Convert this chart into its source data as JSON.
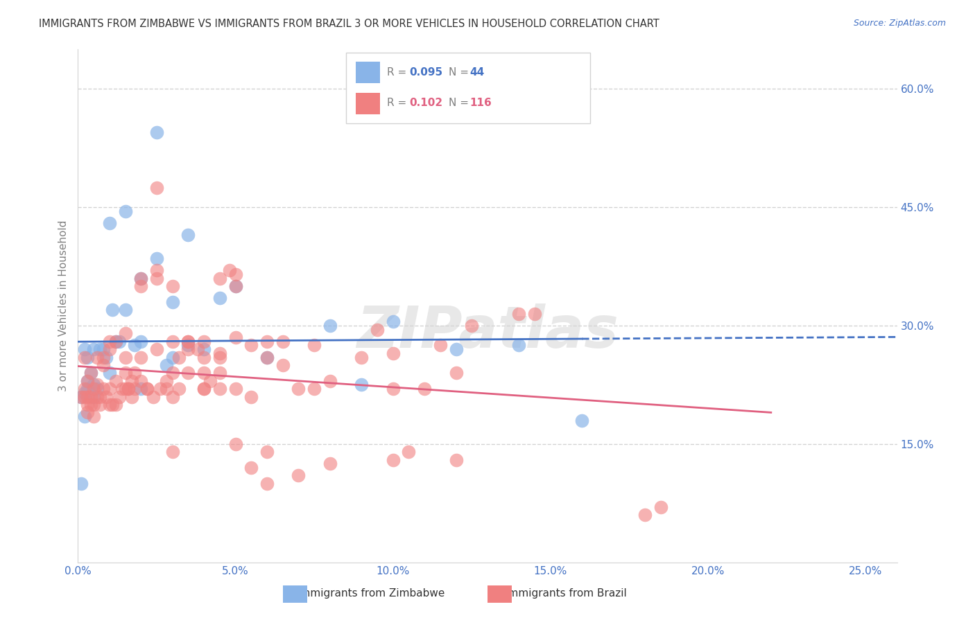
{
  "title": "IMMIGRANTS FROM ZIMBABWE VS IMMIGRANTS FROM BRAZIL 3 OR MORE VEHICLES IN HOUSEHOLD CORRELATION CHART",
  "source": "Source: ZipAtlas.com",
  "xlabel_ticks": [
    "0.0%",
    "5.0%",
    "10.0%",
    "15.0%",
    "20.0%",
    "25.0%"
  ],
  "xlabel_vals": [
    0.0,
    5.0,
    10.0,
    15.0,
    20.0,
    25.0
  ],
  "ylabel_right_ticks": [
    "60.0%",
    "45.0%",
    "30.0%",
    "15.0%"
  ],
  "ylabel_right_vals": [
    60.0,
    45.0,
    30.0,
    15.0
  ],
  "ylabel_left": "3 or more Vehicles in Household",
  "ylim": [
    0.0,
    65.0
  ],
  "xlim": [
    0.0,
    26.0
  ],
  "legend_blue_r": "R = ",
  "legend_blue_r_val": "0.095",
  "legend_blue_n": "N = ",
  "legend_blue_n_val": "44",
  "legend_pink_r": "R = ",
  "legend_pink_r_val": "0.102",
  "legend_pink_n": "N = ",
  "legend_pink_n_val": "116",
  "legend_label_blue": "Immigrants from Zimbabwe",
  "legend_label_pink": "Immigrants from Brazil",
  "blue_color": "#89b4e8",
  "pink_color": "#f08080",
  "trend_blue_color": "#4472c4",
  "trend_pink_color": "#e06080",
  "watermark": "ZIPatlas",
  "blue_scatter_x": [
    0.5,
    1.0,
    1.5,
    0.2,
    0.3,
    0.4,
    0.6,
    0.8,
    1.2,
    1.8,
    2.0,
    2.5,
    3.0,
    0.1,
    0.2,
    0.3,
    0.3,
    0.5,
    0.7,
    0.9,
    1.1,
    1.3,
    1.5,
    2.0,
    2.8,
    3.5,
    4.5,
    0.1,
    0.2,
    0.5,
    1.0,
    2.0,
    3.0,
    4.0,
    5.0,
    6.0,
    8.0,
    9.0,
    10.0,
    12.0,
    14.0,
    16.0,
    2.5,
    3.5
  ],
  "blue_scatter_y": [
    27.0,
    43.0,
    44.5,
    27.0,
    26.0,
    24.0,
    22.0,
    27.0,
    28.0,
    27.5,
    36.0,
    38.5,
    33.0,
    21.0,
    21.5,
    22.0,
    23.0,
    22.5,
    27.0,
    26.0,
    32.0,
    28.0,
    32.0,
    28.0,
    25.0,
    27.5,
    33.5,
    10.0,
    18.5,
    21.0,
    24.0,
    22.0,
    26.0,
    27.0,
    35.0,
    26.0,
    30.0,
    22.5,
    30.5,
    27.0,
    27.5,
    18.0,
    54.5,
    41.5
  ],
  "pink_scatter_x": [
    0.2,
    0.3,
    0.4,
    0.5,
    0.6,
    0.8,
    1.0,
    1.2,
    1.4,
    1.5,
    1.6,
    1.7,
    1.8,
    2.0,
    2.2,
    2.5,
    2.8,
    3.0,
    3.2,
    3.5,
    3.8,
    4.0,
    4.2,
    4.5,
    0.1,
    0.2,
    0.3,
    0.3,
    0.4,
    0.5,
    0.6,
    0.7,
    0.8,
    0.9,
    1.0,
    1.1,
    1.2,
    1.3,
    1.5,
    1.6,
    1.7,
    1.8,
    2.0,
    2.2,
    2.4,
    2.6,
    2.8,
    3.0,
    3.2,
    3.5,
    4.0,
    4.5,
    5.0,
    5.5,
    6.0,
    6.5,
    7.0,
    7.5,
    8.0,
    9.0,
    10.0,
    11.0,
    12.0,
    5.0,
    5.5,
    6.0,
    7.0,
    8.0,
    10.0,
    14.0,
    18.0,
    0.2,
    0.4,
    0.6,
    0.8,
    1.0,
    1.2,
    1.5,
    2.0,
    2.5,
    3.0,
    3.5,
    4.0,
    4.5,
    5.0,
    5.5,
    6.0,
    6.5,
    0.3,
    0.5,
    0.7,
    1.0,
    1.5,
    2.0,
    2.5,
    3.0,
    3.5,
    4.0,
    4.5,
    5.0,
    10.5,
    12.0,
    2.5,
    4.8,
    14.5,
    18.5,
    10.0,
    12.5,
    3.0,
    4.0,
    5.0,
    6.0,
    4.5,
    7.5,
    9.5,
    11.5
  ],
  "pink_scatter_y": [
    26.0,
    23.0,
    24.0,
    22.0,
    26.0,
    25.0,
    27.0,
    23.0,
    22.0,
    26.0,
    22.0,
    23.0,
    24.0,
    26.0,
    22.0,
    27.0,
    22.0,
    24.0,
    26.0,
    28.0,
    27.0,
    22.0,
    23.0,
    24.0,
    21.0,
    22.0,
    20.0,
    21.0,
    20.0,
    20.0,
    21.0,
    21.0,
    22.0,
    21.0,
    22.0,
    20.0,
    20.0,
    21.0,
    24.0,
    22.0,
    21.0,
    22.0,
    23.0,
    22.0,
    21.0,
    22.0,
    23.0,
    21.0,
    22.0,
    24.0,
    22.0,
    22.0,
    22.0,
    21.0,
    14.0,
    25.0,
    22.0,
    22.0,
    23.0,
    26.0,
    22.0,
    22.0,
    24.0,
    15.0,
    12.0,
    10.0,
    11.0,
    12.5,
    13.0,
    31.5,
    6.0,
    21.0,
    21.0,
    22.5,
    26.0,
    28.0,
    28.0,
    29.0,
    35.0,
    37.0,
    28.0,
    28.0,
    28.0,
    36.0,
    35.0,
    27.5,
    26.0,
    28.0,
    19.0,
    18.5,
    20.0,
    20.0,
    22.0,
    36.0,
    36.0,
    35.0,
    27.0,
    26.0,
    26.5,
    36.5,
    14.0,
    13.0,
    47.5,
    37.0,
    31.5,
    7.0,
    26.5,
    30.0,
    14.0,
    24.0,
    28.5,
    28.0,
    26.0,
    27.5,
    29.5,
    27.5
  ]
}
